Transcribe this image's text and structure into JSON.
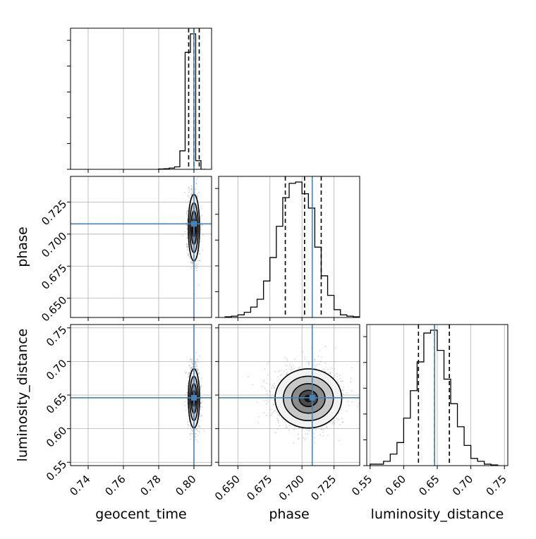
{
  "chart_data": {
    "type": "corner",
    "parameters": [
      {
        "name": "geocent_time",
        "label": "geocent_time",
        "range": [
          0.73,
          0.81
        ],
        "ticks": [
          "0.74",
          "0.76",
          "0.78",
          "0.80"
        ],
        "truth": 0.8,
        "quantiles": [
          0.797,
          0.8,
          0.803
        ]
      },
      {
        "name": "phase",
        "label": "phase",
        "range": [
          0.635,
          0.745
        ],
        "ticks": [
          "0.650",
          "0.675",
          "0.700",
          "0.725"
        ],
        "truth": 0.708,
        "quantiles": [
          0.687,
          0.702,
          0.715
        ]
      },
      {
        "name": "luminosity_distance",
        "label": "luminosity_distance",
        "range": [
          0.545,
          0.755
        ],
        "ticks": [
          "0.55",
          "0.60",
          "0.65",
          "0.70",
          "0.75"
        ],
        "truth": 0.646,
        "quantiles": [
          0.622,
          0.646,
          0.668
        ]
      }
    ],
    "histograms": [
      {
        "param": "geocent_time",
        "bin_edges": [
          0.78,
          0.783,
          0.786,
          0.789,
          0.792,
          0.795,
          0.798,
          0.801,
          0.804,
          0.807
        ],
        "counts": [
          0.3,
          0.5,
          1,
          2,
          15,
          95,
          110,
          7,
          0
        ]
      },
      {
        "param": "phase",
        "bin_edges": [
          0.64,
          0.645,
          0.65,
          0.655,
          0.66,
          0.665,
          0.67,
          0.675,
          0.68,
          0.685,
          0.69,
          0.695,
          0.7,
          0.705,
          0.71,
          0.715,
          0.72,
          0.725,
          0.73,
          0.735,
          0.74,
          0.745
        ],
        "counts": [
          0.5,
          1,
          2,
          4,
          8,
          14,
          28,
          46,
          70,
          92,
          103,
          104,
          95,
          84,
          54,
          32,
          17,
          6,
          2,
          1,
          0.5
        ]
      },
      {
        "param": "luminosity_distance",
        "bin_edges": [
          0.55,
          0.56,
          0.57,
          0.58,
          0.59,
          0.6,
          0.61,
          0.62,
          0.63,
          0.64,
          0.65,
          0.66,
          0.67,
          0.68,
          0.69,
          0.7,
          0.71,
          0.72,
          0.73,
          0.74
        ],
        "counts": [
          1,
          1,
          3,
          8,
          16,
          33,
          52,
          72,
          92,
          94,
          80,
          60,
          43,
          27,
          14,
          5,
          3,
          1,
          0.5
        ]
      }
    ],
    "posterior_2d": [
      {
        "x": "geocent_time",
        "y": "phase",
        "center": [
          0.8,
          0.705
        ],
        "sigma": [
          0.0016,
          0.013
        ]
      },
      {
        "x": "geocent_time",
        "y": "luminosity_distance",
        "center": [
          0.8,
          0.645
        ],
        "sigma": [
          0.0016,
          0.022
        ]
      },
      {
        "x": "phase",
        "y": "luminosity_distance",
        "center": [
          0.705,
          0.645
        ],
        "sigma": [
          0.013,
          0.022
        ]
      }
    ],
    "contour_levels": [
      0.12,
      0.39,
      0.68,
      0.86
    ],
    "colors": {
      "truth": "#4682b4",
      "hist": "#000000",
      "quantile": "#000000",
      "grid": "#b0b0b0",
      "points": "#555555"
    },
    "grid": true
  }
}
